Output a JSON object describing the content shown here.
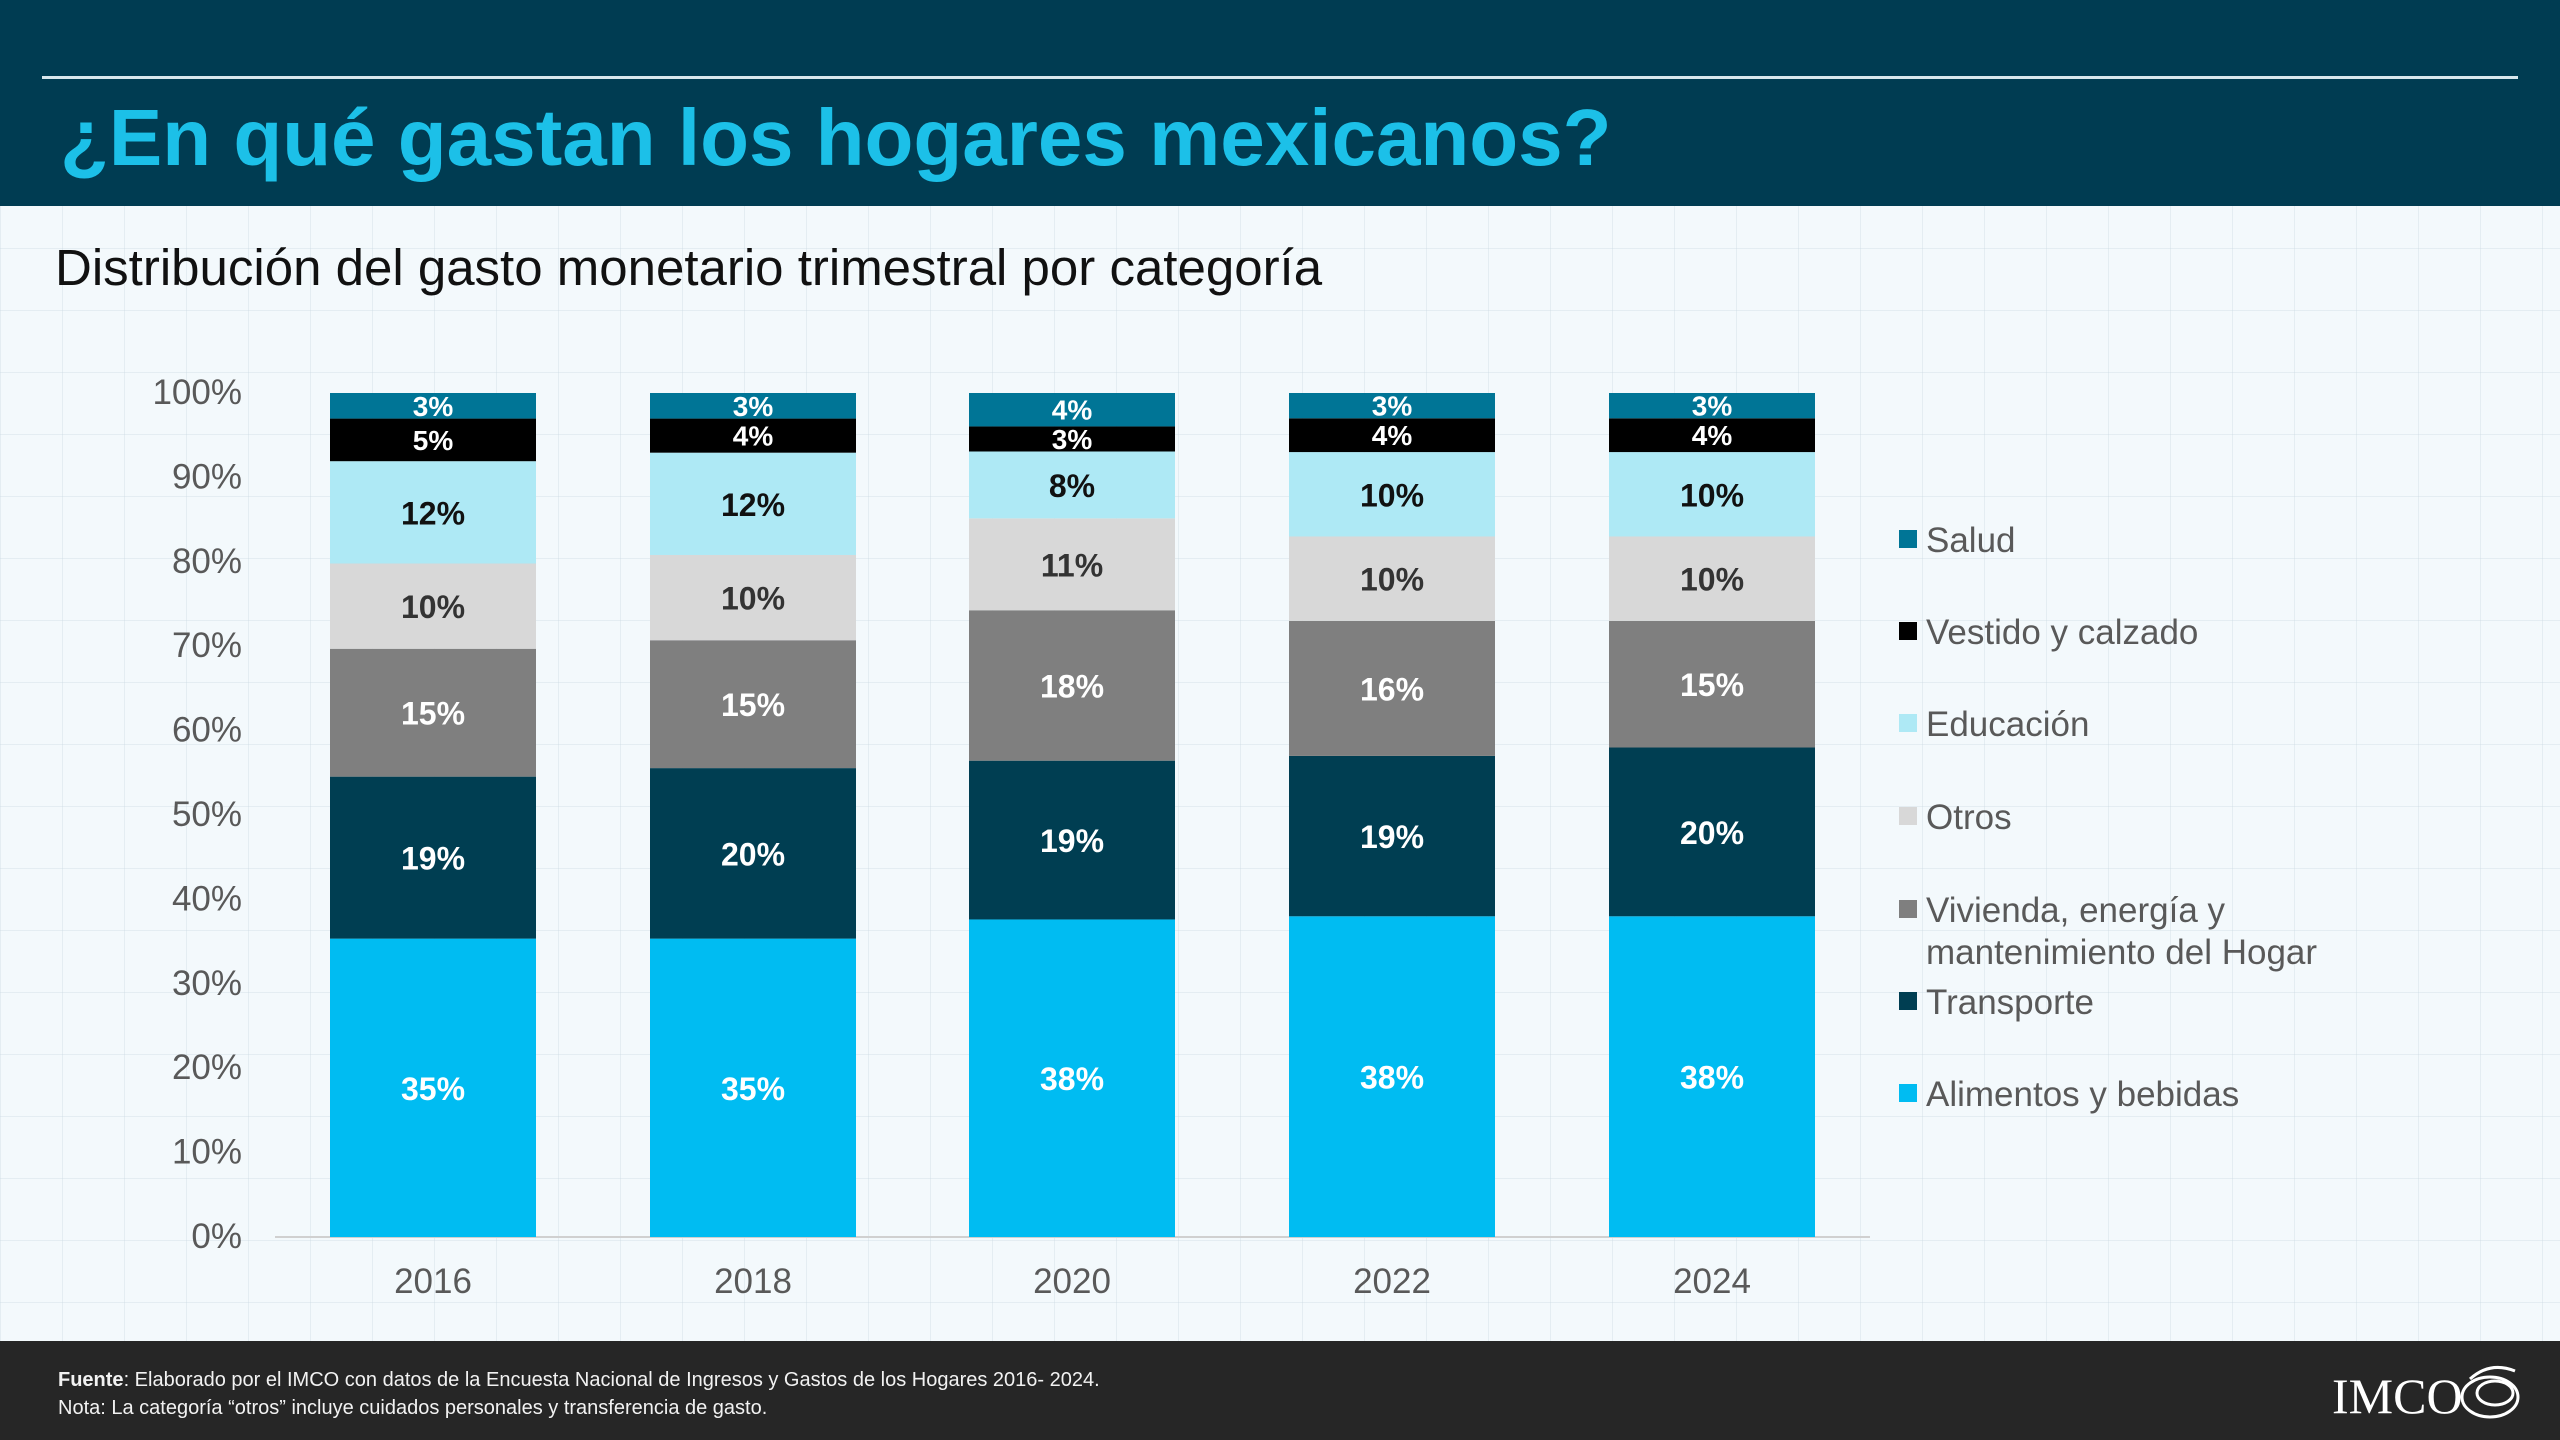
{
  "header": {
    "title": "¿En qué gastan los hogares mexicanos?",
    "subtitle": "Distribución del gasto monetario trimestral por categoría"
  },
  "colors": {
    "header_bg": "#003c52",
    "title": "#1cc0e8",
    "footer_bg": "#262626"
  },
  "chart_data": {
    "type": "bar",
    "stacked": true,
    "categories": [
      "2016",
      "2018",
      "2020",
      "2022",
      "2024"
    ],
    "ylim": [
      0,
      100
    ],
    "yticks": [
      "0%",
      "10%",
      "20%",
      "30%",
      "40%",
      "50%",
      "60%",
      "70%",
      "80%",
      "90%",
      "100%"
    ],
    "legend_position": "right",
    "series": [
      {
        "name": "Alimentos y bebidas",
        "color": "#00bcf2",
        "label_color": "#ffffff",
        "values": [
          35,
          35,
          38,
          38,
          38
        ]
      },
      {
        "name": "Transporte",
        "color": "#003e52",
        "label_color": "#ffffff",
        "values": [
          19,
          20,
          19,
          19,
          20
        ]
      },
      {
        "name": "Vivienda, energía y mantenimiento del Hogar",
        "color": "#7f7f7f",
        "label_color": "#ffffff",
        "values": [
          15,
          15,
          18,
          16,
          15
        ]
      },
      {
        "name": "Otros",
        "color": "#d8d8d8",
        "label_color": "#333333",
        "values": [
          10,
          10,
          11,
          10,
          10
        ]
      },
      {
        "name": "Educación",
        "color": "#aee9f5",
        "label_color": "#111111",
        "values": [
          12,
          12,
          8,
          10,
          10
        ]
      },
      {
        "name": "Vestido y calzado",
        "color": "#000000",
        "label_color": "#ffffff",
        "values": [
          5,
          4,
          3,
          4,
          4
        ]
      },
      {
        "name": "Salud",
        "color": "#007596",
        "label_color": "#ffffff",
        "values": [
          3,
          3,
          4,
          3,
          3
        ]
      }
    ],
    "data_labels": [
      [
        "35%",
        "35%",
        "38%",
        "38%",
        "38%"
      ],
      [
        "19%",
        "20%",
        "19%",
        "19%",
        "20%"
      ],
      [
        "15%",
        "15%",
        "18%",
        "16%",
        "15%"
      ],
      [
        "10%",
        "10%",
        "11%",
        "10%",
        "10%"
      ],
      [
        "12%",
        "12%",
        "8%",
        "10%",
        "10%"
      ],
      [
        "5%",
        "4%",
        "3%",
        "4%",
        "4%"
      ],
      [
        "3%",
        "3%",
        "4%",
        "3%",
        "3%"
      ]
    ],
    "legend_lines": [
      [
        "Salud"
      ],
      [
        "Vestido y calzado"
      ],
      [
        "Educación"
      ],
      [
        "Otros"
      ],
      [
        "Vivienda, energía y",
        "mantenimiento del Hogar"
      ],
      [
        "Transporte"
      ],
      [
        "Alimentos y bebidas"
      ]
    ]
  },
  "footer": {
    "source_label": "Fuente",
    "source_text": ": Elaborado por el IMCO con datos de la Encuesta Nacional de Ingresos y Gastos de los Hogares 2016- 2024.",
    "note": "Nota: La categoría “otros” incluye cuidados personales y transferencia de gasto.",
    "logo_text": "IMCO"
  }
}
